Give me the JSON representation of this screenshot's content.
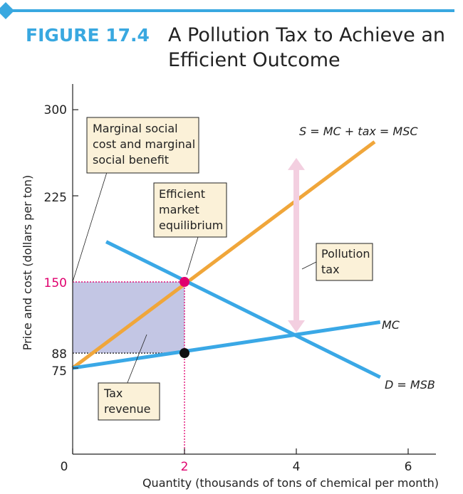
{
  "figure": {
    "label": "FIGURE 17.4",
    "title_line1": "A Pollution Tax to Achieve an",
    "title_line2": "Efficient Outcome"
  },
  "colors": {
    "accent": "#39a8e0",
    "label_red": "#e0006e",
    "supply": "#f0a63a",
    "demand_mc": "#3aa8e6",
    "callout_bg": "#fbf1d8",
    "tax_area": "#c3c6e4",
    "arrow": "#f3cfe0"
  },
  "chart_data": {
    "type": "line",
    "xlabel": "Quantity (thousands of tons of chemical per month)",
    "ylabel": "Price and cost (dollars per ton)",
    "x_ticks": [
      0,
      2,
      4,
      6
    ],
    "x_tick_labels": [
      "0",
      "2",
      "4",
      "6"
    ],
    "y_ticks": [
      75,
      88,
      150,
      225,
      300
    ],
    "y_tick_labels": [
      "75",
      "88",
      "150",
      "225",
      "300"
    ],
    "xlim": [
      0,
      6.5
    ],
    "ylim": [
      0,
      315
    ],
    "grid": false,
    "series": [
      {
        "name": "S = MC + tax = MSC",
        "x": [
          0,
          5.4
        ],
        "y": [
          75,
          272
        ]
      },
      {
        "name": "MC",
        "x": [
          0,
          5.5
        ],
        "y": [
          75,
          115
        ]
      },
      {
        "name": "D = MSB",
        "x": [
          0.6,
          5.5
        ],
        "y": [
          185,
          67
        ]
      }
    ],
    "points": [
      {
        "x": 2,
        "y": 150
      },
      {
        "x": 2,
        "y": 88
      }
    ],
    "tax_revenue_area": {
      "x": [
        0,
        2
      ],
      "y": [
        88,
        150
      ]
    },
    "pollution_tax_arrow": {
      "x": 4,
      "y": [
        106,
        258
      ]
    },
    "annotations": {
      "msc_msb": [
        "Marginal social",
        "cost and marginal",
        "social benefit"
      ],
      "efficient": [
        "Efficient",
        "market",
        "equilibrium"
      ],
      "pollution_tax": [
        "Pollution",
        "tax"
      ],
      "tax_revenue": [
        "Tax",
        "revenue"
      ]
    }
  }
}
